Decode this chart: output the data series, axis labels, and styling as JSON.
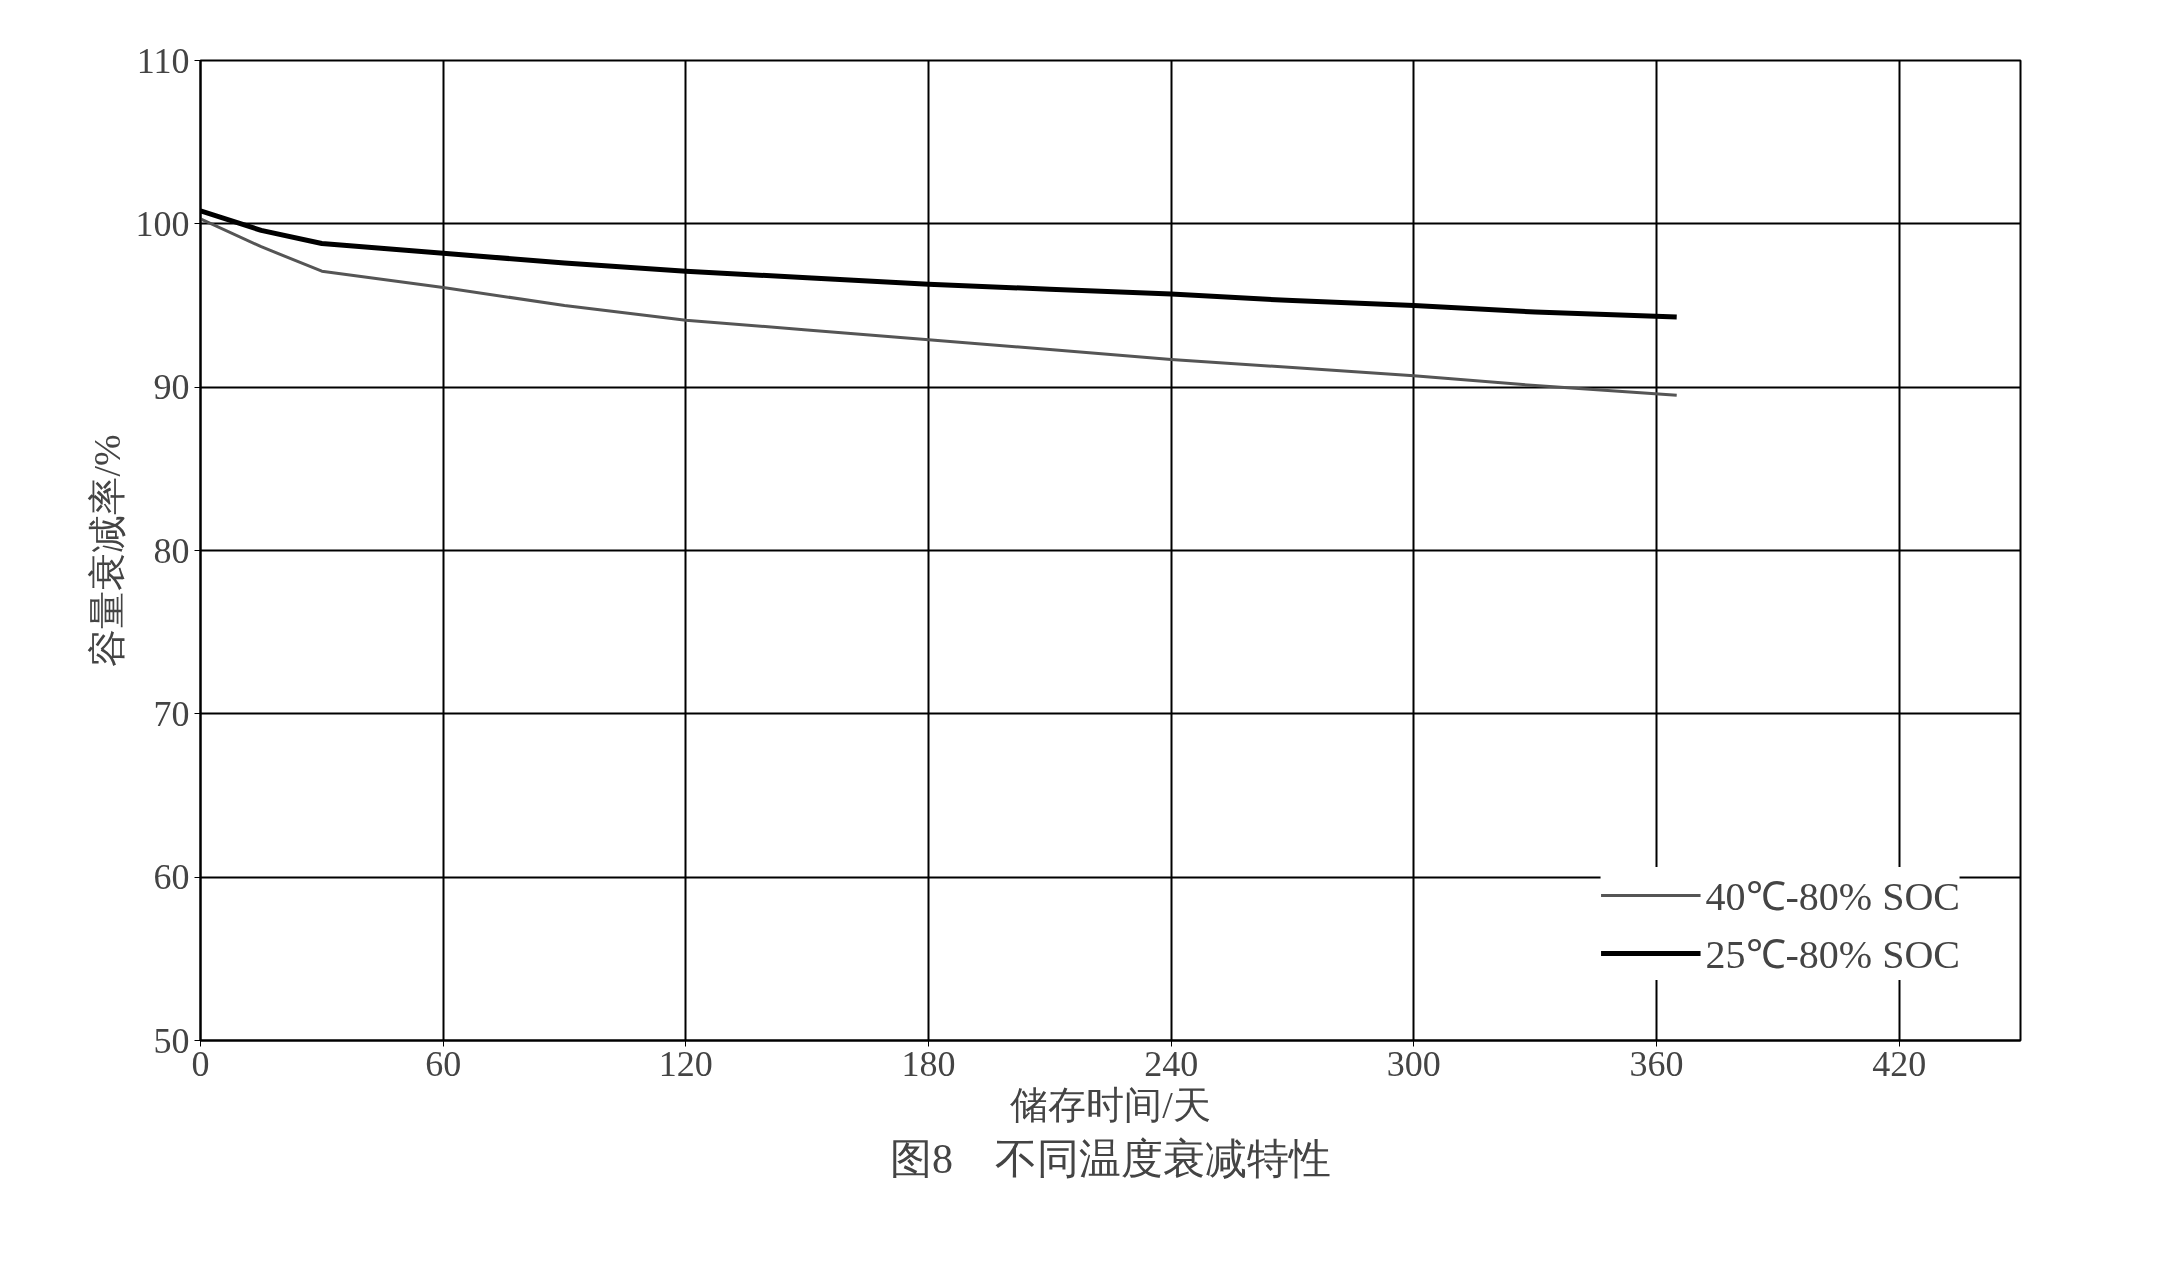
{
  "chart_data": {
    "type": "line",
    "xlabel": "储存时间/天",
    "ylabel": "容量衰减率/%",
    "annotations": [
      "图8　不同温度衰减特性"
    ],
    "xlim": [
      0,
      450
    ],
    "xticks": [
      0,
      60,
      120,
      180,
      240,
      300,
      360,
      420
    ],
    "ylim": [
      50,
      110
    ],
    "yticks": [
      50,
      60,
      70,
      80,
      90,
      100,
      110
    ],
    "grid": true,
    "legend": "bottom right",
    "line_style": "solid",
    "series": [
      {
        "name": "40℃-80% SOC",
        "color": "#555555",
        "x": [
          0,
          15,
          30,
          60,
          90,
          120,
          150,
          180,
          210,
          240,
          270,
          300,
          330,
          365
        ],
        "values": [
          100.3,
          98.6,
          97.1,
          96.1,
          95.0,
          94.1,
          93.5,
          92.9,
          92.3,
          91.7,
          91.2,
          90.7,
          90.1,
          89.5
        ]
      },
      {
        "name": "25℃-80% SOC",
        "color": "#000000",
        "x": [
          0,
          15,
          30,
          60,
          90,
          120,
          150,
          180,
          210,
          240,
          270,
          300,
          330,
          365
        ],
        "values": [
          100.8,
          99.6,
          98.8,
          98.2,
          97.6,
          97.1,
          96.7,
          96.3,
          96.0,
          95.7,
          95.3,
          95.0,
          94.6,
          94.3
        ]
      }
    ]
  }
}
